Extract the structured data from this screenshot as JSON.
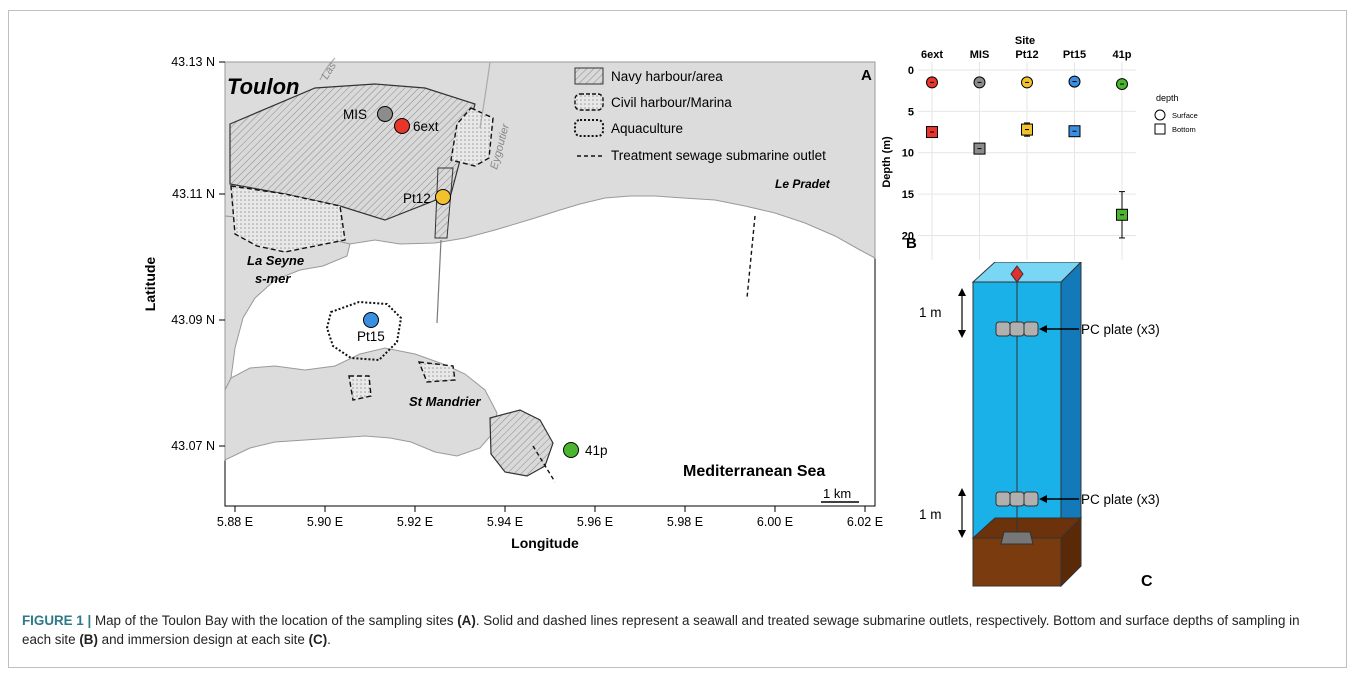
{
  "map": {
    "panel_label": "A",
    "xlabel": "Longitude",
    "ylabel": "Latitude",
    "x_ticks": [
      "5.88 E",
      "5.90 E",
      "5.92 E",
      "5.94 E",
      "5.96 E",
      "5.98 E",
      "6.00 E",
      "6.02 E"
    ],
    "y_ticks": [
      "43.13 N",
      "43.11 N",
      "43.09 N",
      "43.07 N"
    ],
    "places": {
      "toulon": "Toulon",
      "la_seyne_1": "La Seyne",
      "la_seyne_2": "s-mer",
      "st_mandrier": "St Mandrier",
      "le_pradet": "Le Pradet",
      "las": "Las",
      "eygoutier": "Eygoutier",
      "sea": "Mediterranean Sea"
    },
    "scale_bar": "1 km",
    "legend": {
      "navy": "Navy harbour/area",
      "civil": "Civil harbour/Marina",
      "aquaculture": "Aquaculture",
      "sewage": "Treatment sewage submarine outlet"
    },
    "sites": [
      {
        "name": "MIS",
        "color": "#8c8c8c"
      },
      {
        "name": "6ext",
        "color": "#e8362a"
      },
      {
        "name": "Pt12",
        "color": "#f2c12e"
      },
      {
        "name": "Pt15",
        "color": "#3b8ee0"
      },
      {
        "name": "41p",
        "color": "#4cb52f"
      }
    ]
  },
  "chart_data": {
    "type": "scatter",
    "panel_label": "B",
    "title": "Site",
    "categories": [
      "6ext",
      "MIS",
      "Pt12",
      "Pt15",
      "41p"
    ],
    "ylabel": "Depth (m)",
    "ylim": [
      0,
      22
    ],
    "y_reversed": true,
    "y_ticks": [
      0,
      5,
      10,
      15,
      20
    ],
    "x_axis_position": "top",
    "legend_title": "depth",
    "legend_placement": "right",
    "series": [
      {
        "name": "Surface",
        "marker": "circle",
        "values": [
          1.5,
          1.5,
          1.5,
          1.4,
          1.7
        ],
        "errors": [
          0.2,
          0.2,
          0.4,
          0.2,
          0.3
        ]
      },
      {
        "name": "Bottom",
        "marker": "square",
        "values": [
          7.5,
          9.5,
          7.2,
          7.4,
          17.5
        ],
        "errors": [
          0.3,
          0.4,
          0.8,
          0.3,
          2.8
        ]
      }
    ],
    "colors": [
      "#e8362a",
      "#8c8c8c",
      "#f2c12e",
      "#3b8ee0",
      "#4cb52f"
    ],
    "grid": true
  },
  "design": {
    "panel_label": "C",
    "top_distance": "1 m",
    "bottom_distance": "1 m",
    "plate_top": "PC plate (x3)",
    "plate_bottom": "PC plate (x3)",
    "water_color": "#1ab0e8",
    "sediment_color": "#7a3b0f"
  },
  "caption": {
    "figure": "FIGURE 1 |",
    "t1": " Map of the Toulon Bay with the location of the sampling sites ",
    "a": "(A)",
    "t2": ". Solid and dashed lines represent a seawall and treated sewage submarine outlets, respectively. Bottom and surface depths of sampling in each site ",
    "b": "(B)",
    "t3": " and immersion design at each site ",
    "c": "(C)",
    "t4": "."
  }
}
